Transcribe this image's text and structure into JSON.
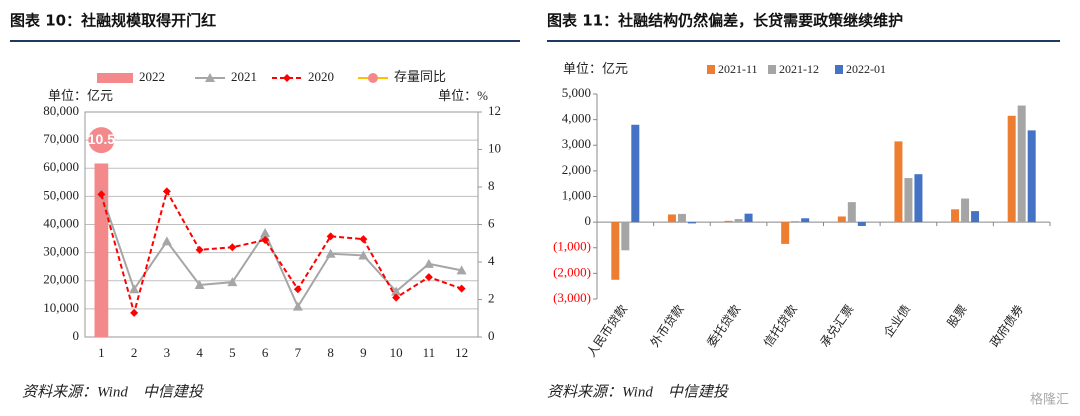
{
  "chart_data": [
    {
      "type": "combo",
      "title": "图表 10：社融规模取得开门红",
      "y_label": "单位：亿元",
      "y2_label": "单位：%",
      "categories": [
        "1",
        "2",
        "3",
        "4",
        "5",
        "6",
        "7",
        "8",
        "9",
        "10",
        "11",
        "12"
      ],
      "series": [
        {
          "name": "2022",
          "kind": "bar",
          "color": "#f4898b",
          "values": [
            61700,
            null,
            null,
            null,
            null,
            null,
            null,
            null,
            null,
            null,
            null,
            null
          ]
        },
        {
          "name": "2021",
          "kind": "line",
          "marker": "triangle",
          "color": "#a6a6a6",
          "values": [
            51000,
            17000,
            34000,
            18500,
            19500,
            37000,
            10800,
            29600,
            29000,
            16200,
            26000,
            23700
          ]
        },
        {
          "name": "2020",
          "kind": "line",
          "marker": "diamond",
          "dashed": true,
          "color": "#ff0000",
          "values": [
            50700,
            8600,
            51800,
            31000,
            31900,
            34500,
            17000,
            35800,
            34800,
            14000,
            21300,
            17200
          ]
        },
        {
          "name": "存量同比",
          "kind": "line",
          "marker": "circle",
          "color": "#ffc000",
          "marker_color": "#f4898b",
          "axis": "y2",
          "values": [
            10.5,
            null,
            null,
            null,
            null,
            null,
            null,
            null,
            null,
            null,
            null,
            null
          ],
          "value_labels": [
            "10.5",
            null,
            null,
            null,
            null,
            null,
            null,
            null,
            null,
            null,
            null,
            null
          ]
        }
      ],
      "ylim": [
        0,
        80000
      ],
      "yticks": [
        0,
        {
          "value": 10000,
          "label": "10,000"
        },
        {
          "value": 20000,
          "label": "20,000"
        },
        {
          "value": 30000,
          "label": "30,000"
        },
        {
          "value": 40000,
          "label": "40,000"
        },
        {
          "value": 50000,
          "label": "50,000"
        },
        {
          "value": 60000,
          "label": "60,000"
        },
        {
          "value": 70000,
          "label": "70,000"
        },
        {
          "value": 80000,
          "label": "80,000"
        }
      ],
      "y2lim": [
        0,
        12
      ],
      "y2ticks": [
        0,
        2,
        4,
        6,
        8,
        10,
        12
      ],
      "grid": true,
      "source": "资料来源：Wind　中信建投"
    },
    {
      "type": "bar",
      "title": "图表 11：社融结构仍然偏差，长贷需要政策继续维护",
      "y_label": "单位：亿元",
      "categories": [
        "人民币贷款",
        "外币贷款",
        "委托贷款",
        "信托贷款",
        "承兑汇票",
        "企业债",
        "股票",
        "政府债券"
      ],
      "series": [
        {
          "name": "2021-11",
          "color": "#ed7d31",
          "values": [
            -2250,
            300,
            50,
            -850,
            220,
            3150,
            500,
            4150
          ]
        },
        {
          "name": "2021-12",
          "color": "#a5a5a5",
          "values": [
            -1100,
            320,
            120,
            40,
            780,
            1720,
            920,
            4550
          ]
        },
        {
          "name": "2022-01",
          "color": "#4472c4",
          "values": [
            3800,
            -50,
            330,
            150,
            -150,
            1870,
            430,
            3580
          ]
        }
      ],
      "ylim": [
        -3000,
        5000
      ],
      "yticks": [
        {
          "value": -3000,
          "label": "(3,000)"
        },
        {
          "value": -2000,
          "label": "(2,000)"
        },
        {
          "value": -1000,
          "label": "(1,000)"
        },
        0,
        {
          "value": 1000,
          "label": "1,000"
        },
        {
          "value": 2000,
          "label": "2,000"
        },
        {
          "value": 3000,
          "label": "3,000"
        },
        {
          "value": 4000,
          "label": "4,000"
        },
        {
          "value": 5000,
          "label": "5,000"
        }
      ],
      "negative_label_color": "#ff0000",
      "grid": false,
      "source": "资料来源：Wind　中信建投"
    }
  ],
  "watermark": "格隆汇"
}
